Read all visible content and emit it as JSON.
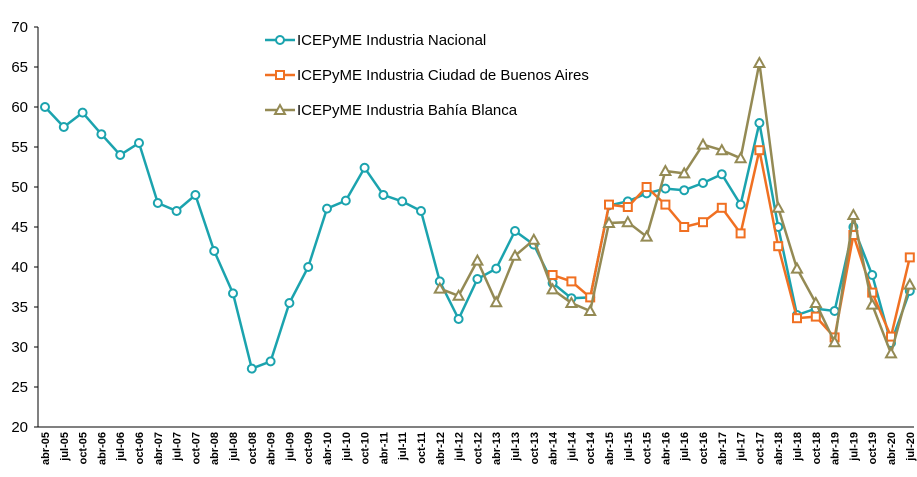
{
  "chart_data": {
    "type": "line",
    "categories": [
      "abr-05",
      "jul-05",
      "oct-05",
      "abr-06",
      "jul-06",
      "oct-06",
      "abr-07",
      "jul-07",
      "oct-07",
      "abr-08",
      "jul-08",
      "oct-08",
      "abr-09",
      "jul-09",
      "oct-09",
      "abr-10",
      "jul-10",
      "oct-10",
      "abr-11",
      "jul-11",
      "oct-11",
      "abr-12",
      "jul-12",
      "oct-12",
      "abr-13",
      "jul-13",
      "oct-13",
      "abr-14",
      "jul-14",
      "oct-14",
      "abr-15",
      "jul-15",
      "oct-15",
      "abr-16",
      "jul-16",
      "oct-16",
      "abr-17",
      "jul-17",
      "oct-17",
      "abr-18",
      "jul-18",
      "oct-18",
      "abr-19",
      "jul-19",
      "oct-19",
      "abr-20",
      "jul-20"
    ],
    "series": [
      {
        "name": "ICEPyME Industria Nacional",
        "color": "#1ba3ae",
        "marker": "circle",
        "values": [
          60,
          57.5,
          59.3,
          56.6,
          54,
          55.5,
          48,
          47,
          49,
          42,
          36.7,
          27.3,
          28.2,
          35.5,
          40,
          47.3,
          48.3,
          52.4,
          49,
          48.2,
          47,
          38.2,
          33.5,
          38.5,
          39.8,
          44.5,
          42.8,
          38,
          36.1,
          36.2,
          47.7,
          48.2,
          49.2,
          49.8,
          49.6,
          50.5,
          51.6,
          47.8,
          58,
          45,
          34,
          34.8,
          34.5,
          45,
          39,
          30.5,
          37
        ]
      },
      {
        "name": "ICEPyME Industria Ciudad de Buenos Aires",
        "color": "#f07022",
        "marker": "square",
        "values": [
          null,
          null,
          null,
          null,
          null,
          null,
          null,
          null,
          null,
          null,
          null,
          null,
          null,
          null,
          null,
          null,
          null,
          null,
          null,
          null,
          null,
          null,
          null,
          null,
          null,
          null,
          null,
          39,
          38.2,
          36.2,
          47.8,
          47.5,
          50,
          47.8,
          45,
          45.6,
          47.4,
          44.2,
          54.6,
          42.6,
          33.6,
          33.8,
          31.2,
          44,
          36.8,
          31.3,
          41.2
        ]
      },
      {
        "name": "ICEPyME Industria Bahía Blanca",
        "color": "#948a54",
        "marker": "triangle",
        "values": [
          null,
          null,
          null,
          null,
          null,
          null,
          null,
          null,
          null,
          null,
          null,
          null,
          null,
          null,
          null,
          null,
          null,
          null,
          null,
          null,
          null,
          37.3,
          36.4,
          40.8,
          35.6,
          41.4,
          43.4,
          37.2,
          35.5,
          34.5,
          45.5,
          45.6,
          43.8,
          52,
          51.7,
          55.3,
          54.6,
          53.6,
          65.5,
          47.4,
          39.8,
          35.5,
          30.6,
          46.5,
          35.3,
          29.2,
          37.8
        ]
      }
    ],
    "ylim": [
      20,
      70
    ],
    "yticks": [
      20,
      25,
      30,
      35,
      40,
      45,
      50,
      55,
      60,
      65,
      70
    ],
    "grid": false
  }
}
